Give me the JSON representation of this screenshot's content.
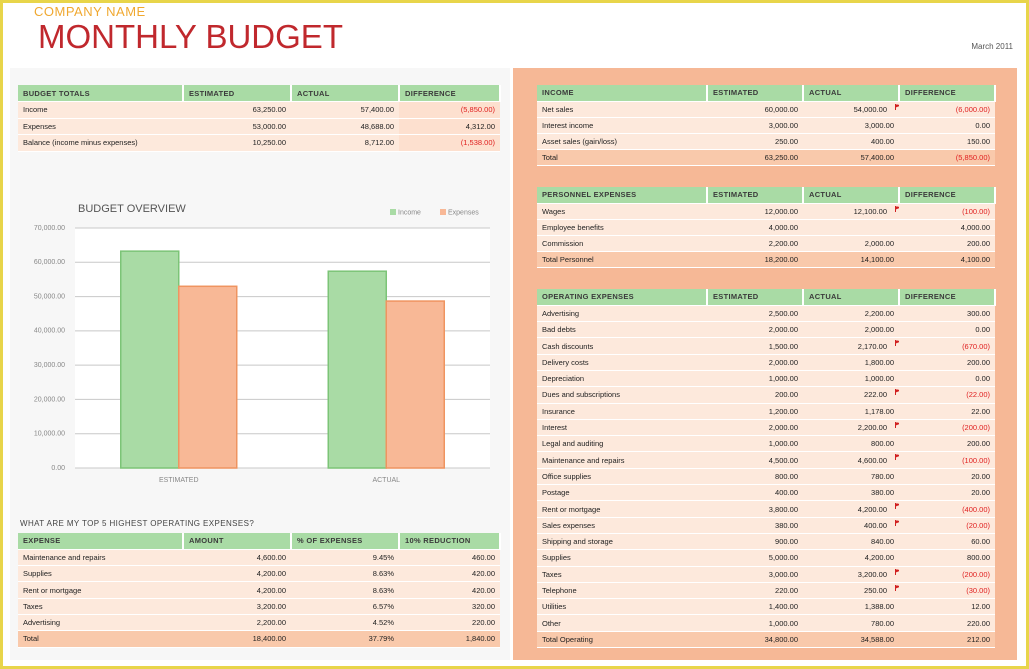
{
  "header": {
    "company": "COMPANY NAME",
    "title": "MONTHLY BUDGET",
    "date": "March 2011"
  },
  "budget_totals": {
    "columns": [
      "BUDGET TOTALS",
      "ESTIMATED",
      "ACTUAL",
      "DIFFERENCE"
    ],
    "rows": [
      [
        "Income",
        "63,250.00",
        "57,400.00",
        "(5,850.00)"
      ],
      [
        "Expenses",
        "53,000.00",
        "48,688.00",
        "4,312.00"
      ],
      [
        "Balance (income minus expenses)",
        "10,250.00",
        "8,712.00",
        "(1,538.00)"
      ]
    ]
  },
  "chart": {
    "type": "bar",
    "title": "BUDGET OVERVIEW",
    "categories": [
      "ESTIMATED",
      "ACTUAL"
    ],
    "series": [
      {
        "name": "Income",
        "color": "#a9dba5",
        "values": [
          63250,
          57400
        ]
      },
      {
        "name": "Expenses",
        "color": "#f8b896",
        "values": [
          53000,
          48688
        ]
      }
    ],
    "ylim": [
      0,
      70000
    ],
    "yticks": [
      {
        "value": 0,
        "label": "0.00"
      },
      {
        "value": 10000,
        "label": "10,000.00"
      },
      {
        "value": 20000,
        "label": "20,000.00"
      },
      {
        "value": 30000,
        "label": "30,000.00"
      },
      {
        "value": 40000,
        "label": "40,000.00"
      },
      {
        "value": 50000,
        "label": "50,000.00"
      },
      {
        "value": 60000,
        "label": "60,000.00"
      },
      {
        "value": 70000,
        "label": "70,000.00"
      }
    ],
    "grid": true,
    "legend": "top-right"
  },
  "top_expenses": {
    "title": "WHAT ARE MY TOP 5 HIGHEST OPERATING EXPENSES?",
    "columns": [
      "EXPENSE",
      "AMOUNT",
      "% OF EXPENSES",
      "10% REDUCTION"
    ],
    "rows": [
      [
        "Maintenance and repairs",
        "4,600.00",
        "9.45%",
        "460.00"
      ],
      [
        "Supplies",
        "4,200.00",
        "8.63%",
        "420.00"
      ],
      [
        "Rent or mortgage",
        "4,200.00",
        "8.63%",
        "420.00"
      ],
      [
        "Taxes",
        "3,200.00",
        "6.57%",
        "320.00"
      ],
      [
        "Advertising",
        "2,200.00",
        "4.52%",
        "220.00"
      ],
      [
        "Total",
        "18,400.00",
        "37.79%",
        "1,840.00"
      ]
    ]
  },
  "income": {
    "columns": [
      "INCOME",
      "ESTIMATED",
      "ACTUAL",
      "DIFFERENCE"
    ],
    "rows": [
      [
        "Net sales",
        "60,000.00",
        "54,000.00",
        "(6,000.00)"
      ],
      [
        "Interest income",
        "3,000.00",
        "3,000.00",
        "0.00"
      ],
      [
        "Asset sales (gain/loss)",
        "250.00",
        "400.00",
        "150.00"
      ],
      [
        "Total",
        "63,250.00",
        "57,400.00",
        "(5,850.00)"
      ]
    ]
  },
  "personnel": {
    "columns": [
      "PERSONNEL EXPENSES",
      "ESTIMATED",
      "ACTUAL",
      "DIFFERENCE"
    ],
    "rows": [
      [
        "Wages",
        "12,000.00",
        "12,100.00",
        "(100.00)"
      ],
      [
        "Employee benefits",
        "4,000.00",
        null,
        "4,000.00"
      ],
      [
        "Commission",
        "2,200.00",
        "2,000.00",
        "200.00"
      ],
      [
        "Total Personnel",
        "18,200.00",
        "14,100.00",
        "4,100.00"
      ]
    ]
  },
  "operating": {
    "columns": [
      "OPERATING EXPENSES",
      "ESTIMATED",
      "ACTUAL",
      "DIFFERENCE"
    ],
    "rows": [
      [
        "Advertising",
        "2,500.00",
        "2,200.00",
        "300.00"
      ],
      [
        "Bad debts",
        "2,000.00",
        "2,000.00",
        "0.00"
      ],
      [
        "Cash discounts",
        "1,500.00",
        "2,170.00",
        "(670.00)"
      ],
      [
        "Delivery costs",
        "2,000.00",
        "1,800.00",
        "200.00"
      ],
      [
        "Depreciation",
        "1,000.00",
        "1,000.00",
        "0.00"
      ],
      [
        "Dues and subscriptions",
        "200.00",
        "222.00",
        "(22.00)"
      ],
      [
        "Insurance",
        "1,200.00",
        "1,178.00",
        "22.00"
      ],
      [
        "Interest",
        "2,000.00",
        "2,200.00",
        "(200.00)"
      ],
      [
        "Legal and auditing",
        "1,000.00",
        "800.00",
        "200.00"
      ],
      [
        "Maintenance and repairs",
        "4,500.00",
        "4,600.00",
        "(100.00)"
      ],
      [
        "Office supplies",
        "800.00",
        "780.00",
        "20.00"
      ],
      [
        "Postage",
        "400.00",
        "380.00",
        "20.00"
      ],
      [
        "Rent or mortgage",
        "3,800.00",
        "4,200.00",
        "(400.00)"
      ],
      [
        "Sales expenses",
        "380.00",
        "400.00",
        "(20.00)"
      ],
      [
        "Shipping and storage",
        "900.00",
        "840.00",
        "60.00"
      ],
      [
        "Supplies",
        "5,000.00",
        "4,200.00",
        "800.00"
      ],
      [
        "Taxes",
        "3,000.00",
        "3,200.00",
        "(200.00)"
      ],
      [
        "Telephone",
        "220.00",
        "250.00",
        "(30.00)"
      ],
      [
        "Utilities",
        "1,400.00",
        "1,388.00",
        "12.00"
      ],
      [
        "Other",
        "1,000.00",
        "780.00",
        "220.00"
      ],
      [
        "Total Operating",
        "34,800.00",
        "34,588.00",
        "212.00"
      ]
    ]
  }
}
